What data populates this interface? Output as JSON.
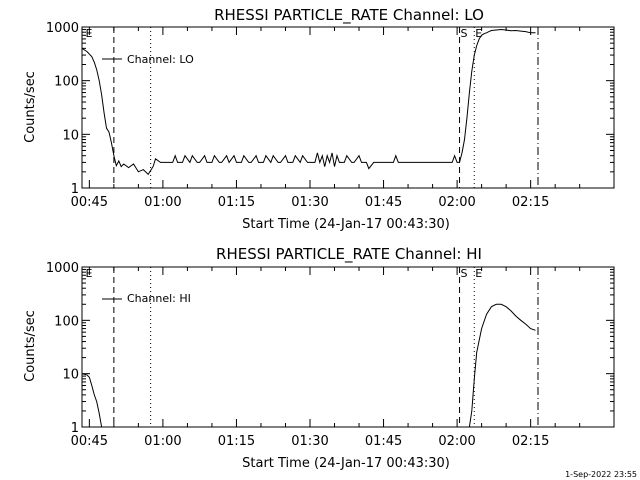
{
  "chart_data": [
    {
      "type": "line",
      "title": "RHESSI PARTICLE_RATE Channel: LO",
      "xlabel": "Start Time (24-Jan-17 00:43:30)",
      "ylabel": "Counts/sec",
      "y_scale": "log",
      "ylim": [
        1,
        1000
      ],
      "y_ticks": [
        {
          "v": 1,
          "label": "1"
        },
        {
          "v": 10,
          "label": "10"
        },
        {
          "v": 100,
          "label": "100"
        },
        {
          "v": 1000,
          "label": "1000"
        }
      ],
      "x_units": "minutes after 00:00 UT",
      "xlim": [
        43.5,
        152
      ],
      "x_ticks": [
        {
          "v": 45,
          "label": "00:45"
        },
        {
          "v": 60,
          "label": "01:00"
        },
        {
          "v": 75,
          "label": "01:15"
        },
        {
          "v": 90,
          "label": "01:30"
        },
        {
          "v": 105,
          "label": "01:45"
        },
        {
          "v": 120,
          "label": "02:00"
        },
        {
          "v": 135,
          "label": "02:15"
        }
      ],
      "legend": {
        "label": "Channel: LO",
        "placement": "top-left"
      },
      "series": [
        {
          "name": "Channel: LO",
          "x": [
            43.5,
            44.5,
            45.5,
            46.0,
            46.5,
            47.0,
            47.5,
            48.0,
            48.5,
            49.0,
            49.5,
            50.0,
            50.5,
            51.0,
            51.5,
            52.0,
            53.0,
            54.0,
            55.0,
            56.0,
            57.0,
            58.0,
            58.5,
            59.5,
            60.5,
            61.5,
            62.0,
            62.5,
            63.0,
            64.0,
            64.5,
            65.5,
            66.0,
            67.0,
            67.5,
            68.5,
            69.0,
            70.0,
            70.5,
            71.5,
            72.0,
            73.0,
            73.5,
            74.5,
            75.0,
            76.0,
            76.5,
            77.5,
            78.0,
            79.0,
            79.5,
            80.5,
            81.0,
            82.0,
            82.5,
            83.5,
            84.0,
            85.0,
            85.5,
            86.5,
            87.0,
            88.0,
            88.5,
            89.5,
            90.0,
            91.0,
            91.5,
            92.0,
            92.5,
            93.0,
            93.5,
            94.0,
            94.5,
            95.0,
            95.5,
            96.0,
            97.0,
            97.5,
            98.5,
            99.0,
            100.0,
            100.5,
            101.5,
            102.0,
            103.0,
            104.0,
            104.5,
            105.0,
            106.0,
            107.0,
            107.5,
            108.0,
            110.0,
            112.0,
            114.0,
            116.0,
            118.0,
            119.0,
            119.5,
            120.0,
            120.5,
            121.0,
            121.5,
            122.0,
            122.5,
            123.0,
            123.5,
            124.0,
            124.5,
            125.0,
            125.5,
            126.0,
            126.5,
            127.0,
            128.0,
            129.0,
            130.0,
            131.0,
            132.0,
            133.0,
            134.0,
            135.0,
            136.0
          ],
          "y": [
            400,
            350,
            280,
            220,
            160,
            100,
            55,
            25,
            13,
            11,
            7,
            4,
            2.6,
            3.2,
            2.5,
            2.8,
            2.4,
            2.8,
            2.0,
            2.2,
            1.8,
            2.5,
            3.5,
            3.0,
            3.0,
            3.0,
            3.0,
            4.0,
            3.0,
            3.0,
            4.0,
            3.0,
            4.0,
            3.0,
            3.0,
            4.0,
            3.0,
            3.0,
            4.0,
            3.0,
            3.0,
            4.0,
            3.0,
            4.0,
            3.0,
            3.0,
            4.0,
            3.0,
            3.0,
            4.0,
            3.0,
            3.0,
            4.0,
            3.0,
            4.0,
            3.0,
            3.0,
            4.0,
            3.0,
            3.0,
            4.0,
            3.0,
            4.0,
            3.0,
            3.0,
            3.0,
            4.5,
            3.0,
            4.0,
            2.5,
            4.0,
            3.0,
            4.5,
            2.5,
            4.0,
            3.0,
            3.0,
            4.0,
            3.0,
            3.0,
            4.0,
            3.0,
            3.0,
            2.3,
            3.0,
            3.0,
            3.0,
            3.0,
            3.0,
            3.0,
            4.0,
            3.0,
            3.0,
            3.0,
            3.0,
            3.0,
            3.0,
            3.0,
            4.0,
            3.0,
            3.0,
            4.5,
            8,
            20,
            60,
            150,
            300,
            450,
            600,
            700,
            750,
            780,
            820,
            860,
            880,
            900,
            880,
            850,
            860,
            840,
            820,
            780,
            780
          ]
        }
      ],
      "markers": [
        {
          "x": 44.0,
          "label": "E",
          "style": "none"
        },
        {
          "x": 50.0,
          "style": "dashed"
        },
        {
          "x": 57.5,
          "style": "dotted"
        },
        {
          "x": 120.5,
          "label": "S",
          "style": "dashed"
        },
        {
          "x": 123.5,
          "label": "E",
          "style": "dotted"
        },
        {
          "x": 136.5,
          "style": "dashdot"
        }
      ]
    },
    {
      "type": "line",
      "title": "RHESSI PARTICLE_RATE Channel: HI",
      "xlabel": "Start Time (24-Jan-17 00:43:30)",
      "ylabel": "Counts/sec",
      "y_scale": "log",
      "ylim": [
        1,
        1000
      ],
      "y_ticks": [
        {
          "v": 1,
          "label": "1"
        },
        {
          "v": 10,
          "label": "10"
        },
        {
          "v": 100,
          "label": "100"
        },
        {
          "v": 1000,
          "label": "1000"
        }
      ],
      "x_units": "minutes after 00:00 UT",
      "xlim": [
        43.5,
        152
      ],
      "x_ticks": [
        {
          "v": 45,
          "label": "00:45"
        },
        {
          "v": 60,
          "label": "01:00"
        },
        {
          "v": 75,
          "label": "01:15"
        },
        {
          "v": 90,
          "label": "01:30"
        },
        {
          "v": 105,
          "label": "01:45"
        },
        {
          "v": 120,
          "label": "02:00"
        },
        {
          "v": 135,
          "label": "02:15"
        }
      ],
      "legend": {
        "label": "Channel: HI",
        "placement": "top-left"
      },
      "series": [
        {
          "name": "Channel: HI",
          "x": [
            43.5,
            44.5,
            45.0,
            45.5,
            46.0,
            46.5,
            47.0,
            47.5,
            122.5,
            123.0,
            123.5,
            124.0,
            125.0,
            126.0,
            127.0,
            128.0,
            129.0,
            130.0,
            131.0,
            132.0,
            133.0,
            134.0,
            135.0,
            136.0
          ],
          "y": [
            10,
            9.5,
            8.5,
            6,
            4,
            3,
            1.8,
            1,
            1,
            2,
            8,
            25,
            70,
            130,
            180,
            200,
            200,
            180,
            150,
            120,
            100,
            85,
            70,
            65
          ]
        }
      ],
      "markers": [
        {
          "x": 44.0,
          "label": "E",
          "style": "none"
        },
        {
          "x": 50.0,
          "style": "dashed"
        },
        {
          "x": 57.5,
          "style": "dotted"
        },
        {
          "x": 120.5,
          "label": "S",
          "style": "dashed"
        },
        {
          "x": 123.5,
          "label": "E",
          "style": "dotted"
        },
        {
          "x": 136.5,
          "style": "dashdot"
        }
      ]
    }
  ],
  "footer": {
    "timestamp": "1-Sep-2022 23:55"
  }
}
